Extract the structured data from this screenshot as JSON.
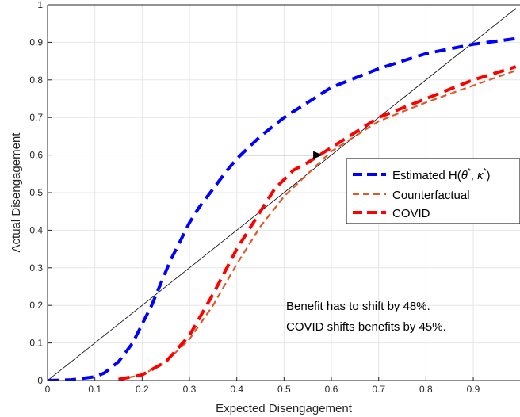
{
  "chart_data": {
    "type": "line",
    "title": "",
    "xlabel": "Expected Disengagement",
    "ylabel": "Actual Disengagement",
    "xlim": [
      0,
      1
    ],
    "ylim": [
      0,
      1
    ],
    "grid": true,
    "xticks": [
      "0",
      "0.1",
      "0.2",
      "0.3",
      "0.4",
      "0.5",
      "0.6",
      "0.7",
      "0.8",
      "0.9"
    ],
    "yticks": [
      "0",
      "0.1",
      "0.2",
      "0.3",
      "0.4",
      "0.5",
      "0.6",
      "0.7",
      "0.8",
      "0.9",
      "1"
    ],
    "legend_placement": "right",
    "colors": {
      "estimated": "#0000ff",
      "counterfactual": "#e0582a",
      "covid": "#ff0000",
      "diagonal": "#000000"
    },
    "series": [
      {
        "name": "Estimated H(θ*, κ*)",
        "legend_main": "Estimated H(",
        "legend_theta": "θ",
        "legend_kappa": "κ",
        "legend_star": "*",
        "legend_comma": ", ",
        "legend_close": ")",
        "style": "dashed-thick",
        "x": [
          0,
          0.05,
          0.1,
          0.12,
          0.15,
          0.18,
          0.2,
          0.22,
          0.24,
          0.26,
          0.28,
          0.3,
          0.32,
          0.35,
          0.38,
          0.4,
          0.45,
          0.5,
          0.55,
          0.6,
          0.7,
          0.8,
          0.9,
          0.99
        ],
        "y": [
          0,
          0.002,
          0.01,
          0.02,
          0.05,
          0.1,
          0.15,
          0.2,
          0.26,
          0.32,
          0.37,
          0.42,
          0.46,
          0.51,
          0.56,
          0.59,
          0.65,
          0.7,
          0.74,
          0.78,
          0.83,
          0.87,
          0.895,
          0.91
        ]
      },
      {
        "name": "Counterfactual",
        "style": "dashed-thin",
        "x": [
          0.15,
          0.2,
          0.25,
          0.3,
          0.35,
          0.4,
          0.45,
          0.5,
          0.55,
          0.6,
          0.65,
          0.7,
          0.8,
          0.9,
          0.99
        ],
        "y": [
          0.003,
          0.015,
          0.05,
          0.11,
          0.2,
          0.31,
          0.41,
          0.49,
          0.55,
          0.61,
          0.65,
          0.69,
          0.74,
          0.785,
          0.825
        ]
      },
      {
        "name": "COVID",
        "style": "dashed-thick",
        "x": [
          0.15,
          0.2,
          0.25,
          0.3,
          0.35,
          0.4,
          0.45,
          0.48,
          0.52,
          0.55,
          0.6,
          0.65,
          0.7,
          0.8,
          0.9,
          0.99
        ],
        "y": [
          0.003,
          0.015,
          0.05,
          0.12,
          0.23,
          0.35,
          0.45,
          0.51,
          0.56,
          0.58,
          0.62,
          0.66,
          0.7,
          0.75,
          0.8,
          0.835
        ]
      },
      {
        "name": "",
        "style": "solid-thin",
        "x": [
          0,
          0.99
        ],
        "y": [
          0,
          0.99
        ]
      }
    ],
    "arrow": {
      "from": [
        0.41,
        0.6
      ],
      "to": [
        0.58,
        0.6
      ]
    },
    "annotations": [
      "Benefit has to shift by 48%.",
      "COVID shifts benefits by 45%."
    ]
  }
}
